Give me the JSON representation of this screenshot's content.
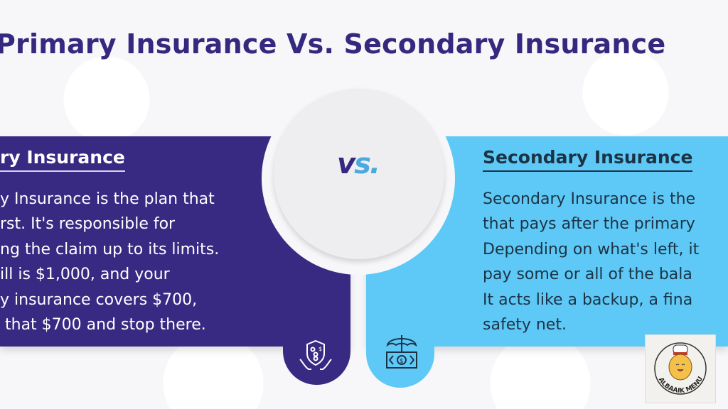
{
  "title": "Primary Insurance Vs. Secondary Insurance",
  "vs": {
    "v": "v",
    "s": "s."
  },
  "primary": {
    "heading": "ry Insurance",
    "lines": [
      "y Insurance is the plan that",
      "rst. It's responsible for",
      "ng the claim up to its limits.",
      "ill is $1,000, and your",
      "y insurance covers $700,",
      " that $700 and stop there."
    ],
    "icon": "hands-shield-money-icon",
    "color": "#382a82"
  },
  "secondary": {
    "heading": "Secondary Insurance",
    "lines": [
      "Secondary Insurance is the",
      "that pays after the primary",
      "Depending on what's left, it",
      "pay some or all of the bala",
      "It acts like a backup, a fina",
      "safety net."
    ],
    "icon": "umbrella-money-icon",
    "color": "#5ec9f6"
  },
  "watermark": {
    "text": "ALBAAIK MENU",
    "icon": "chef-chick-logo"
  }
}
